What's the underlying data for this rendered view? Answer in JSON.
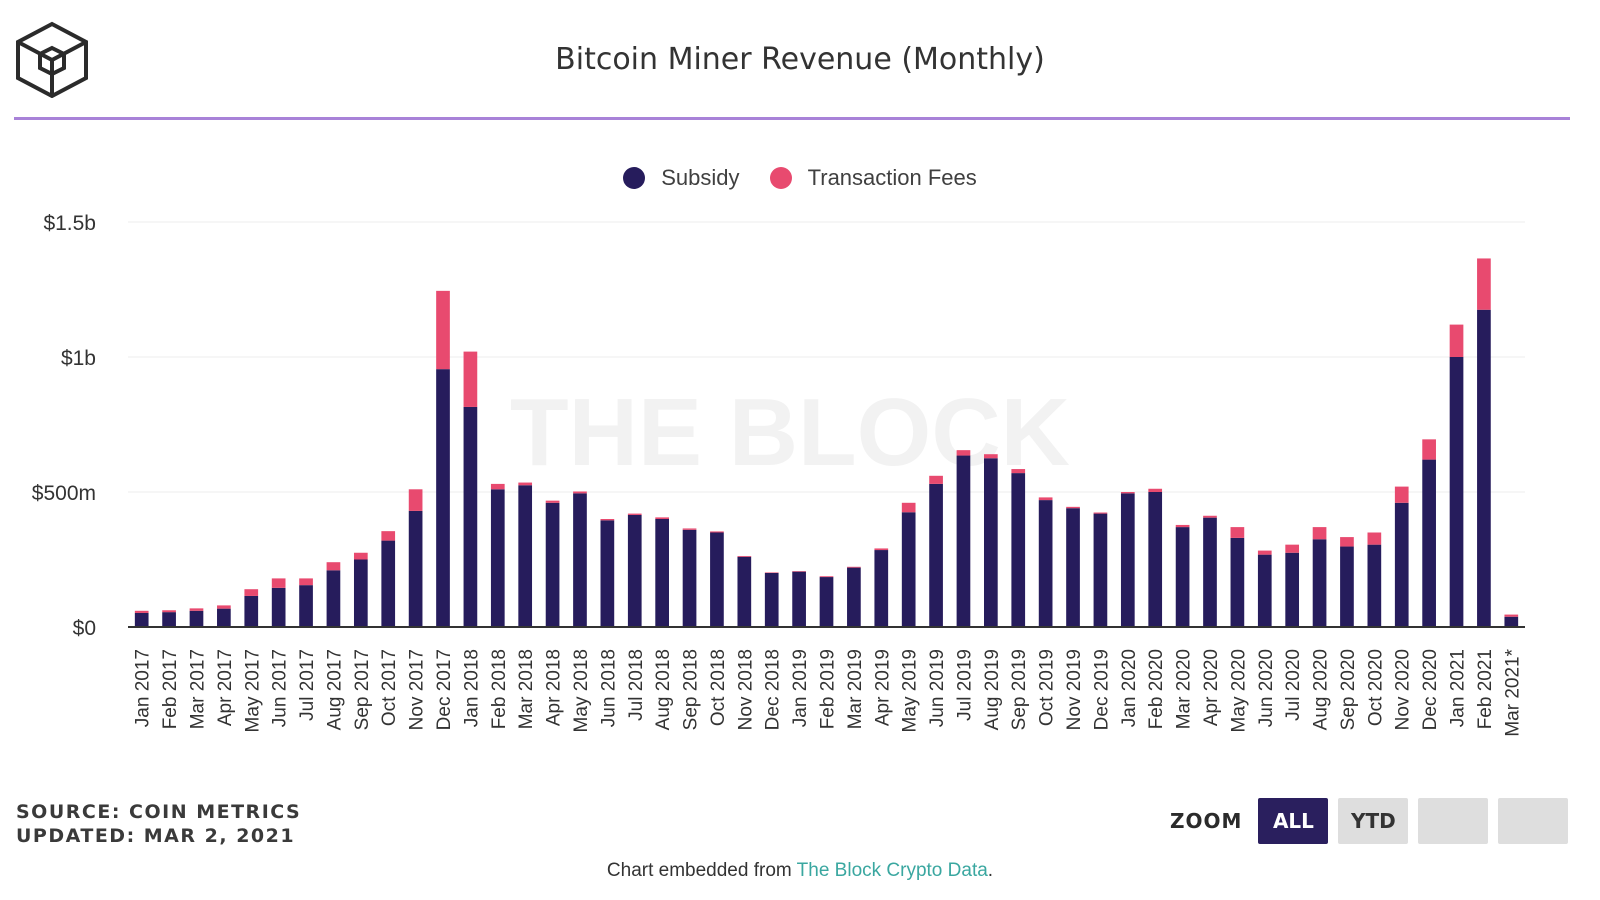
{
  "header": {
    "title": "Bitcoin Miner Revenue (Monthly)",
    "logo_icon": "the-block-cube-logo",
    "accent_color": "#a882d8"
  },
  "legend": {
    "items": [
      {
        "label": "Subsidy",
        "color": "#261c5c"
      },
      {
        "label": "Transaction Fees",
        "color": "#e84a6f"
      }
    ]
  },
  "watermark": "THE BLOCK",
  "footer": {
    "source": "SOURCE: COIN METRICS",
    "updated": "UPDATED: MAR 2, 2021",
    "embed_prefix": "Chart embedded from ",
    "embed_link": "The Block Crypto Data",
    "embed_suffix": "."
  },
  "zoom": {
    "label": "ZOOM",
    "buttons": [
      {
        "label": "ALL",
        "active": true
      },
      {
        "label": "YTD",
        "active": false
      },
      {
        "label": "",
        "active": false
      },
      {
        "label": "",
        "active": false
      }
    ]
  },
  "chart_data": {
    "type": "bar",
    "stacked": true,
    "title": "Bitcoin Miner Revenue (Monthly)",
    "xlabel": "",
    "ylabel": "",
    "ylim": [
      0,
      1500000000
    ],
    "yticks": [
      0,
      500000000,
      1000000000,
      1500000000
    ],
    "ytick_labels": [
      "$0",
      "$500m",
      "$1b",
      "$1.5b"
    ],
    "grid": true,
    "legend_position": "top-center",
    "categories": [
      "Jan 2017",
      "Feb 2017",
      "Mar 2017",
      "Apr 2017",
      "May 2017",
      "Jun 2017",
      "Jul 2017",
      "Aug 2017",
      "Sep 2017",
      "Oct 2017",
      "Nov 2017",
      "Dec 2017",
      "Jan 2018",
      "Feb 2018",
      "Mar 2018",
      "Apr 2018",
      "May 2018",
      "Jun 2018",
      "Jul 2018",
      "Aug 2018",
      "Sep 2018",
      "Oct 2018",
      "Nov 2018",
      "Dec 2018",
      "Jan 2019",
      "Feb 2019",
      "Mar 2019",
      "Apr 2019",
      "May 2019",
      "Jun 2019",
      "Jul 2019",
      "Aug 2019",
      "Sep 2019",
      "Oct 2019",
      "Nov 2019",
      "Dec 2019",
      "Jan 2020",
      "Feb 2020",
      "Mar 2020",
      "Apr 2020",
      "May 2020",
      "Jun 2020",
      "Jul 2020",
      "Aug 2020",
      "Sep 2020",
      "Oct 2020",
      "Nov 2020",
      "Dec 2020",
      "Jan 2021",
      "Feb 2021",
      "Mar 2021*"
    ],
    "series": [
      {
        "name": "Subsidy",
        "color": "#261c5c",
        "values": [
          52000000,
          55000000,
          60000000,
          68000000,
          115000000,
          145000000,
          155000000,
          210000000,
          250000000,
          320000000,
          430000000,
          955000000,
          815000000,
          510000000,
          525000000,
          460000000,
          495000000,
          395000000,
          415000000,
          400000000,
          360000000,
          350000000,
          260000000,
          200000000,
          205000000,
          185000000,
          220000000,
          285000000,
          425000000,
          530000000,
          635000000,
          625000000,
          570000000,
          470000000,
          440000000,
          420000000,
          495000000,
          500000000,
          370000000,
          405000000,
          330000000,
          268000000,
          275000000,
          325000000,
          298000000,
          305000000,
          460000000,
          620000000,
          1000000000,
          1175000000,
          38000000
        ]
      },
      {
        "name": "Transaction Fees",
        "color": "#e84a6f",
        "values": [
          8000000,
          7000000,
          9000000,
          12000000,
          25000000,
          35000000,
          25000000,
          30000000,
          25000000,
          35000000,
          80000000,
          290000000,
          205000000,
          20000000,
          10000000,
          8000000,
          7000000,
          5000000,
          5000000,
          6000000,
          5000000,
          4000000,
          3000000,
          2000000,
          2000000,
          3000000,
          3000000,
          6000000,
          35000000,
          30000000,
          20000000,
          15000000,
          15000000,
          10000000,
          5000000,
          4000000,
          5000000,
          12000000,
          8000000,
          7000000,
          40000000,
          15000000,
          30000000,
          45000000,
          35000000,
          45000000,
          60000000,
          75000000,
          120000000,
          190000000,
          8000000
        ]
      }
    ]
  }
}
